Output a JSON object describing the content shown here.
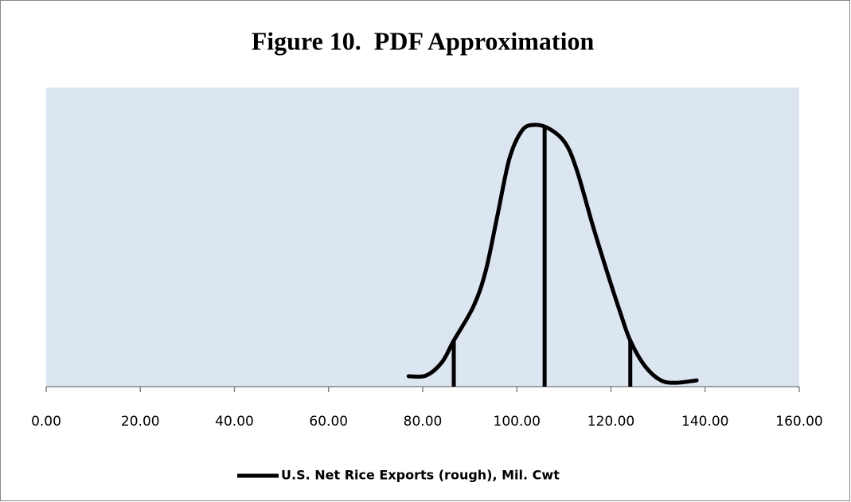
{
  "chart_data": {
    "type": "line",
    "title": "Figure 10.  PDF Approximation",
    "xlim": [
      0,
      160
    ],
    "xticks": [
      {
        "value": 0,
        "label": "0.00"
      },
      {
        "value": 20,
        "label": "20.00"
      },
      {
        "value": 40,
        "label": "40.00"
      },
      {
        "value": 60,
        "label": "60.00"
      },
      {
        "value": 80,
        "label": "80.00"
      },
      {
        "value": 100,
        "label": "100.00"
      },
      {
        "value": 120,
        "label": "120.00"
      },
      {
        "value": 140,
        "label": "140.00"
      },
      {
        "value": 160,
        "label": "160.00"
      }
    ],
    "ylim": [
      0,
      1
    ],
    "series": [
      {
        "name": "U.S. Net Rice Exports (rough), Mil. Cwt",
        "color": "#000000",
        "x": [
          77.0,
          80.7,
          84.1,
          86.6,
          90.8,
          93.4,
          95.9,
          98.4,
          101.0,
          103.5,
          106.9,
          110.3,
          112.8,
          116.2,
          119.6,
          122.1,
          124.1,
          127.2,
          130.6,
          133.9,
          138.2
        ],
        "values": [
          0.035,
          0.037,
          0.082,
          0.154,
          0.269,
          0.388,
          0.574,
          0.761,
          0.854,
          0.875,
          0.862,
          0.814,
          0.721,
          0.535,
          0.362,
          0.242,
          0.154,
          0.069,
          0.021,
          0.013,
          0.021
        ]
      }
    ],
    "reference_lines": [
      {
        "x": 86.6,
        "y": 0.154
      },
      {
        "x": 105.9,
        "y": 0.868
      },
      {
        "x": 124.1,
        "y": 0.154
      }
    ],
    "background": "#dce6f1"
  }
}
